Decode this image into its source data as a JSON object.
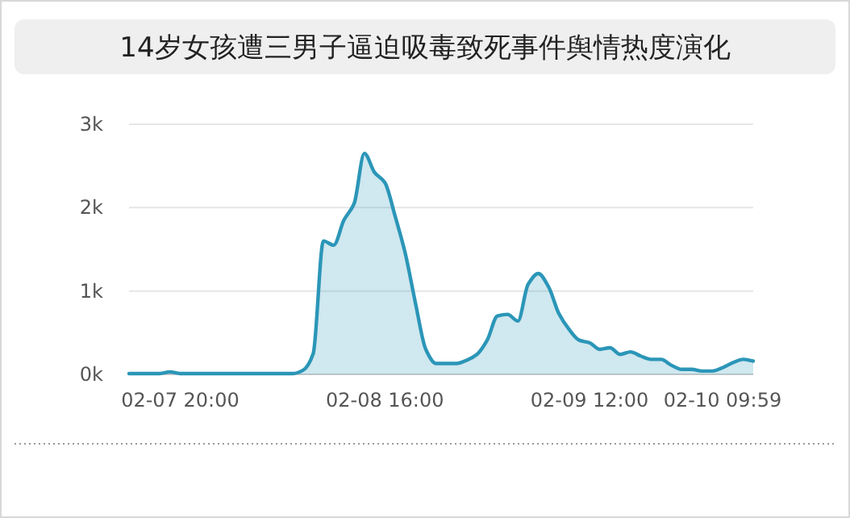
{
  "chart_data": {
    "type": "area",
    "title": "14岁女孩遭三男子逼迫吸毒致死事件舆情热度演化",
    "categories": [
      null,
      null,
      null,
      null,
      null,
      "02-07 20:00",
      null,
      null,
      null,
      null,
      null,
      null,
      null,
      null,
      null,
      null,
      null,
      null,
      null,
      null,
      null,
      null,
      null,
      null,
      null,
      "02-08 16:00",
      null,
      null,
      null,
      null,
      null,
      null,
      null,
      null,
      null,
      null,
      null,
      null,
      null,
      null,
      null,
      null,
      null,
      null,
      null,
      "02-09 12:00",
      null,
      null,
      null,
      null,
      null,
      null,
      null,
      null,
      null,
      null,
      null,
      null,
      "02-10 09:59",
      null,
      null,
      null
    ],
    "values": [
      10,
      10,
      10,
      10,
      30,
      10,
      10,
      10,
      10,
      10,
      10,
      10,
      10,
      10,
      10,
      10,
      10,
      50,
      250,
      1600,
      1550,
      1850,
      2050,
      2650,
      2420,
      2300,
      1900,
      1450,
      850,
      300,
      130,
      130,
      130,
      170,
      240,
      410,
      700,
      720,
      640,
      1080,
      1210,
      1050,
      730,
      540,
      410,
      380,
      300,
      320,
      240,
      270,
      220,
      180,
      180,
      110,
      60,
      60,
      40,
      40,
      80,
      140,
      180,
      160
    ],
    "color": "#2b96b8",
    "ylim": [
      0,
      3000
    ],
    "yticks": [
      {
        "value": 0,
        "label": "0k"
      },
      {
        "value": 1000,
        "label": "1k"
      },
      {
        "value": 2000,
        "label": "2k"
      },
      {
        "value": 3000,
        "label": "3k"
      }
    ],
    "grid": "y"
  }
}
